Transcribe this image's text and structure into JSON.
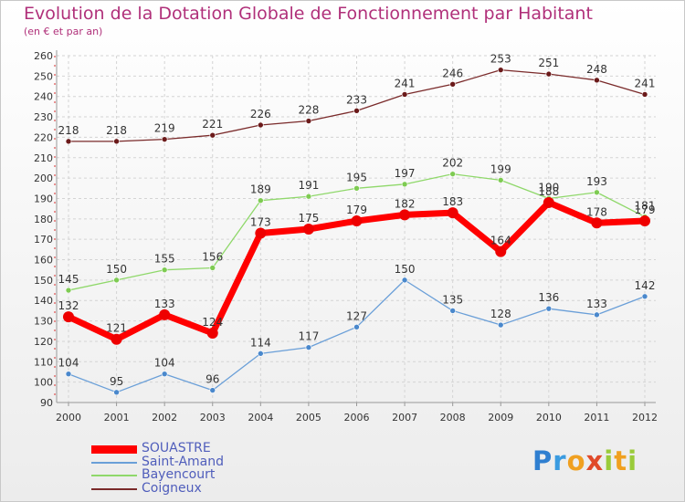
{
  "header": {
    "title": "Evolution de la Dotation Globale de Fonctionnement par Habitant",
    "subtitle": "(en € et par an)"
  },
  "logo": {
    "text": "Proxiti",
    "letters": [
      {
        "ch": "P",
        "color": "#2f7fd0"
      },
      {
        "ch": "r",
        "color": "#3a9be0"
      },
      {
        "ch": "o",
        "color": "#f0a020"
      },
      {
        "ch": "x",
        "color": "#e04a2a"
      },
      {
        "ch": "i",
        "color": "#9acb3a"
      },
      {
        "ch": "t",
        "color": "#f0a020"
      },
      {
        "ch": "i",
        "color": "#9acb3a"
      }
    ]
  },
  "chart_data": {
    "type": "line",
    "title": "Evolution de la Dotation Globale de Fonctionnement par Habitant",
    "subtitle": "(en € et par an)",
    "xlabel": "",
    "ylabel": "",
    "x": [
      "2000",
      "2001",
      "2002",
      "2003",
      "2004",
      "2005",
      "2006",
      "2007",
      "2008",
      "2009",
      "2010",
      "2011",
      "2012"
    ],
    "ylim": [
      90,
      260
    ],
    "yticks": [
      90,
      100,
      110,
      120,
      130,
      140,
      150,
      160,
      170,
      180,
      190,
      200,
      210,
      220,
      230,
      240,
      250,
      260
    ],
    "grid": true,
    "legend_position": "bottom-left",
    "series": [
      {
        "name": "Coigneux",
        "color": "#7a2a2a",
        "point_color": "#6b1a1a",
        "width": 1.3,
        "radius": 3,
        "values": [
          218,
          218,
          219,
          221,
          226,
          228,
          233,
          241,
          246,
          253,
          251,
          248,
          241
        ]
      },
      {
        "name": "Bayencourt",
        "color": "#8fd86a",
        "point_color": "#7ecb52",
        "width": 1.3,
        "radius": 3,
        "values": [
          145,
          150,
          155,
          156,
          189,
          191,
          195,
          197,
          202,
          199,
          190,
          193,
          181
        ]
      },
      {
        "name": "Saint-Amand",
        "color": "#6a9fd8",
        "point_color": "#4a88cc",
        "width": 1.3,
        "radius": 3,
        "values": [
          104,
          95,
          104,
          96,
          114,
          117,
          127,
          150,
          135,
          128,
          136,
          133,
          142
        ]
      },
      {
        "name": "SOUASTRE",
        "color": "#ff0000",
        "point_color": "#ee0000",
        "width": 7,
        "radius": 6,
        "values": [
          132,
          121,
          133,
          124,
          173,
          175,
          179,
          182,
          183,
          164,
          188,
          178,
          179
        ]
      }
    ],
    "legend_order": [
      "SOUASTRE",
      "Saint-Amand",
      "Bayencourt",
      "Coigneux"
    ]
  }
}
